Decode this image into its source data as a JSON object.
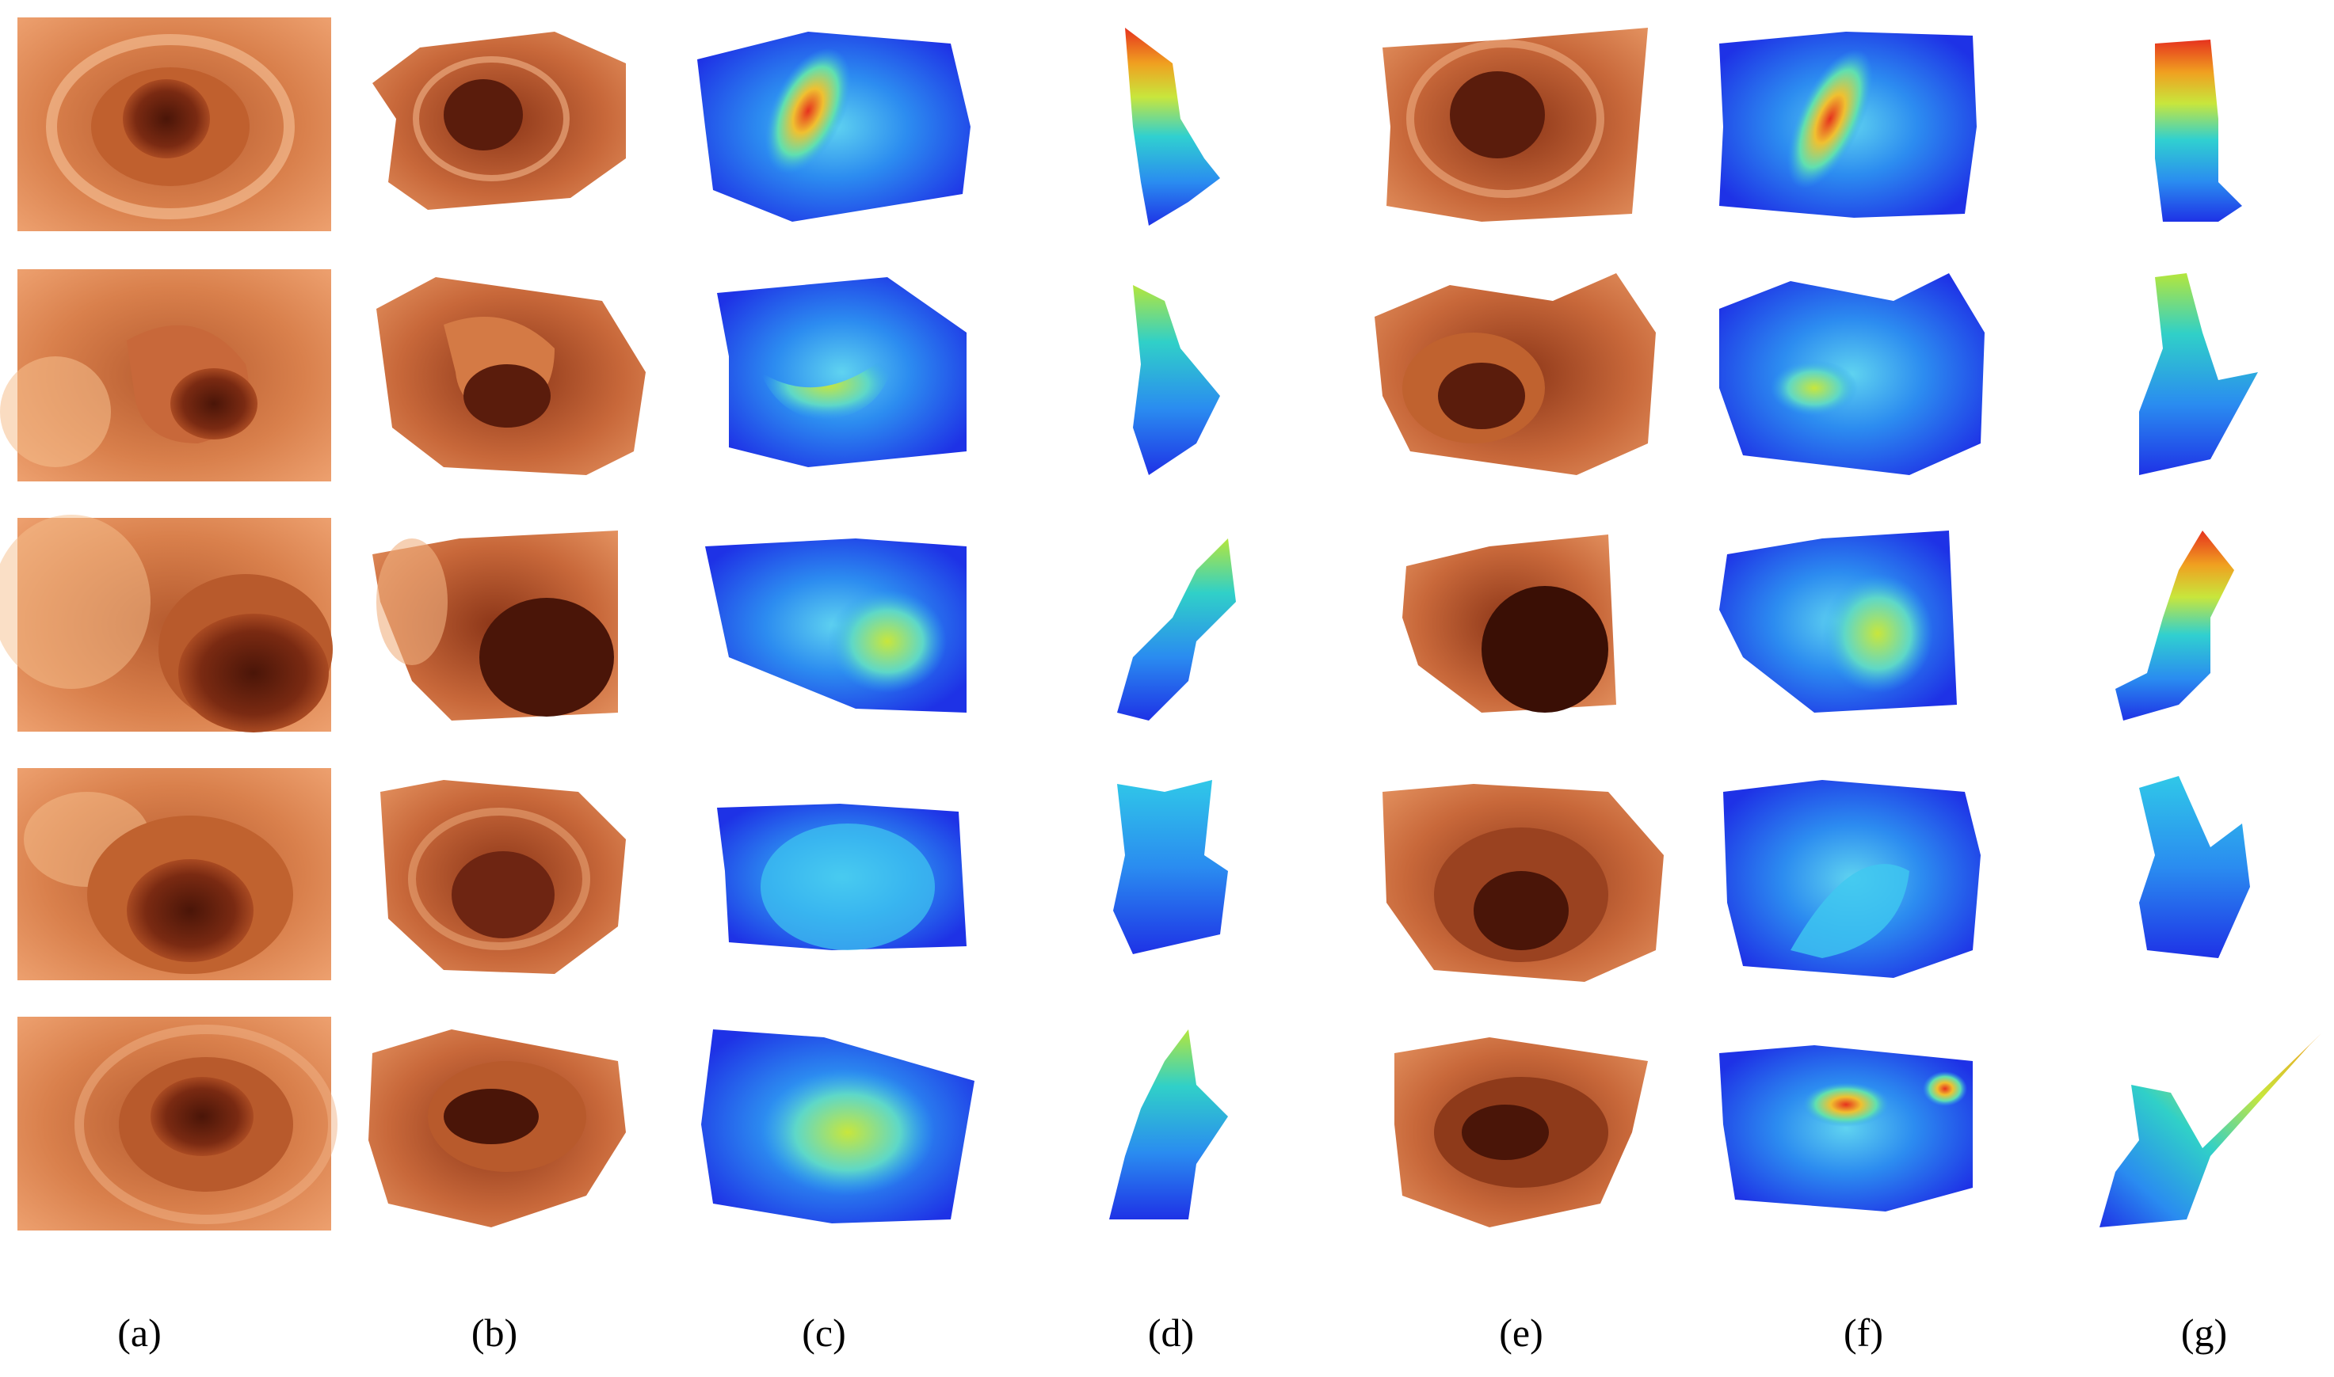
{
  "figure": {
    "panels": [
      {
        "key": "a",
        "label": "(a)",
        "kind": "endoscopy-image"
      },
      {
        "key": "b",
        "label": "(b)",
        "kind": "textured-reconstruction"
      },
      {
        "key": "c",
        "label": "(c)",
        "kind": "depth-colormap-frontal"
      },
      {
        "key": "d",
        "label": "(d)",
        "kind": "depth-colormap-side"
      },
      {
        "key": "e",
        "label": "(e)",
        "kind": "textured-reconstruction"
      },
      {
        "key": "f",
        "label": "(f)",
        "kind": "depth-colormap-frontal"
      },
      {
        "key": "g",
        "label": "(g)",
        "kind": "depth-colormap-side"
      }
    ],
    "row_count": 5,
    "colors": {
      "tissue_light": "#F2A277",
      "tissue_mid": "#DB7F4B",
      "tissue_dark": "#6E2512",
      "depth_far": "#1E32E6",
      "depth_mid": "#24B4F0",
      "depth_near": "#B4E63C",
      "depth_nearest": "#E6321E"
    }
  }
}
